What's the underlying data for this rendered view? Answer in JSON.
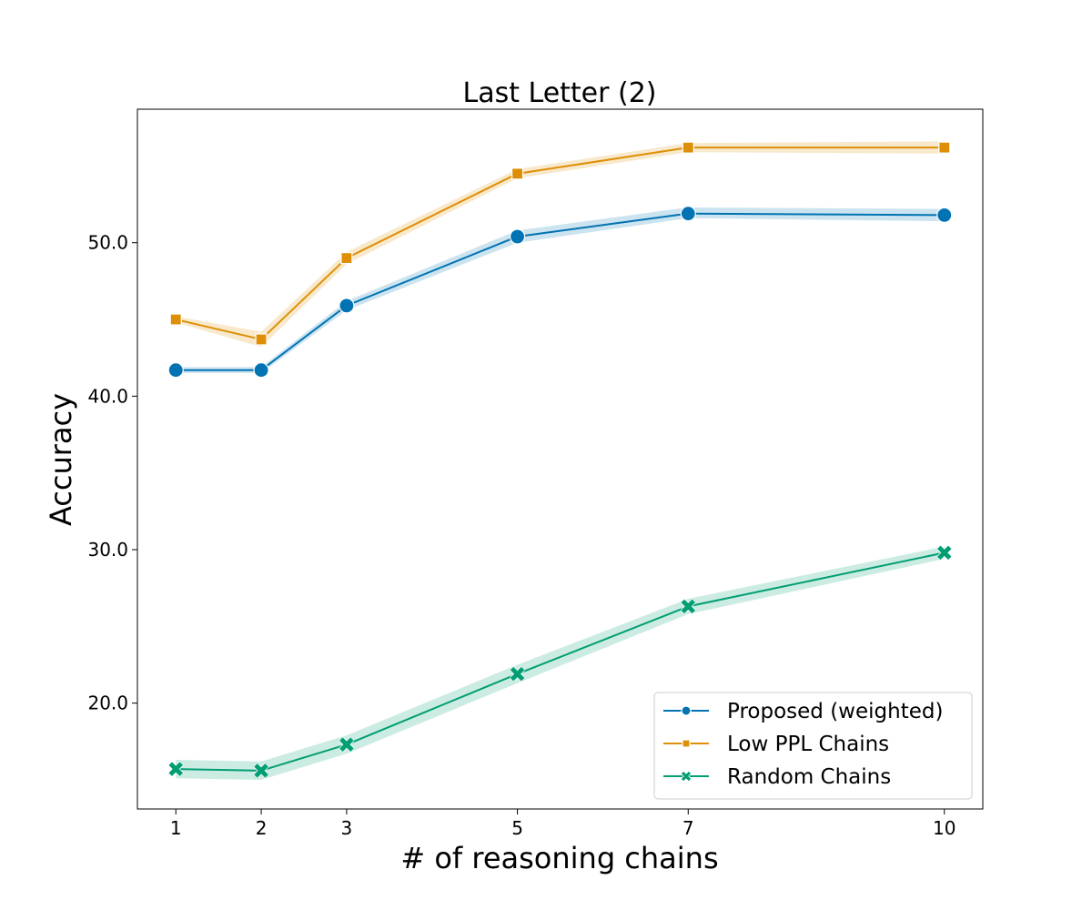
{
  "chart_data": {
    "type": "line",
    "title": "Last Letter (2)",
    "xlabel": "# of reasoning chains",
    "ylabel": "Accuracy",
    "x": [
      1,
      2,
      3,
      5,
      7,
      10
    ],
    "xticks": [
      "1",
      "2",
      "3",
      "5",
      "7",
      "10"
    ],
    "xlim": [
      0.55,
      10.45
    ],
    "ylim": [
      13.1,
      58.7
    ],
    "yticks": [
      20.0,
      30.0,
      40.0,
      50.0
    ],
    "ytick_labels": [
      "20.0",
      "30.0",
      "40.0",
      "50.0"
    ],
    "grid": false,
    "legend_position": "lower-right",
    "series": [
      {
        "name": "Proposed (weighted)",
        "color": "#0173b2",
        "marker": "circle",
        "values": [
          41.7,
          41.7,
          45.9,
          50.4,
          51.9,
          51.8
        ],
        "band_low": [
          41.5,
          41.5,
          45.6,
          50.0,
          51.6,
          51.4
        ],
        "band_high": [
          41.9,
          41.9,
          46.2,
          50.8,
          52.3,
          52.2
        ]
      },
      {
        "name": "Low PPL Chains",
        "color": "#de8f05",
        "marker": "square",
        "values": [
          45.0,
          43.7,
          49.0,
          54.5,
          56.2,
          56.2
        ],
        "band_low": [
          44.8,
          43.2,
          48.6,
          54.2,
          55.9,
          55.8
        ],
        "band_high": [
          45.2,
          44.2,
          49.4,
          54.8,
          56.5,
          56.6
        ]
      },
      {
        "name": "Random Chains",
        "color": "#029e73",
        "marker": "x",
        "values": [
          15.7,
          15.6,
          17.3,
          21.9,
          26.3,
          29.8
        ],
        "band_low": [
          15.1,
          15.0,
          16.7,
          21.3,
          25.8,
          29.4
        ],
        "band_high": [
          16.3,
          16.2,
          17.9,
          22.5,
          26.8,
          30.2
        ]
      }
    ]
  }
}
